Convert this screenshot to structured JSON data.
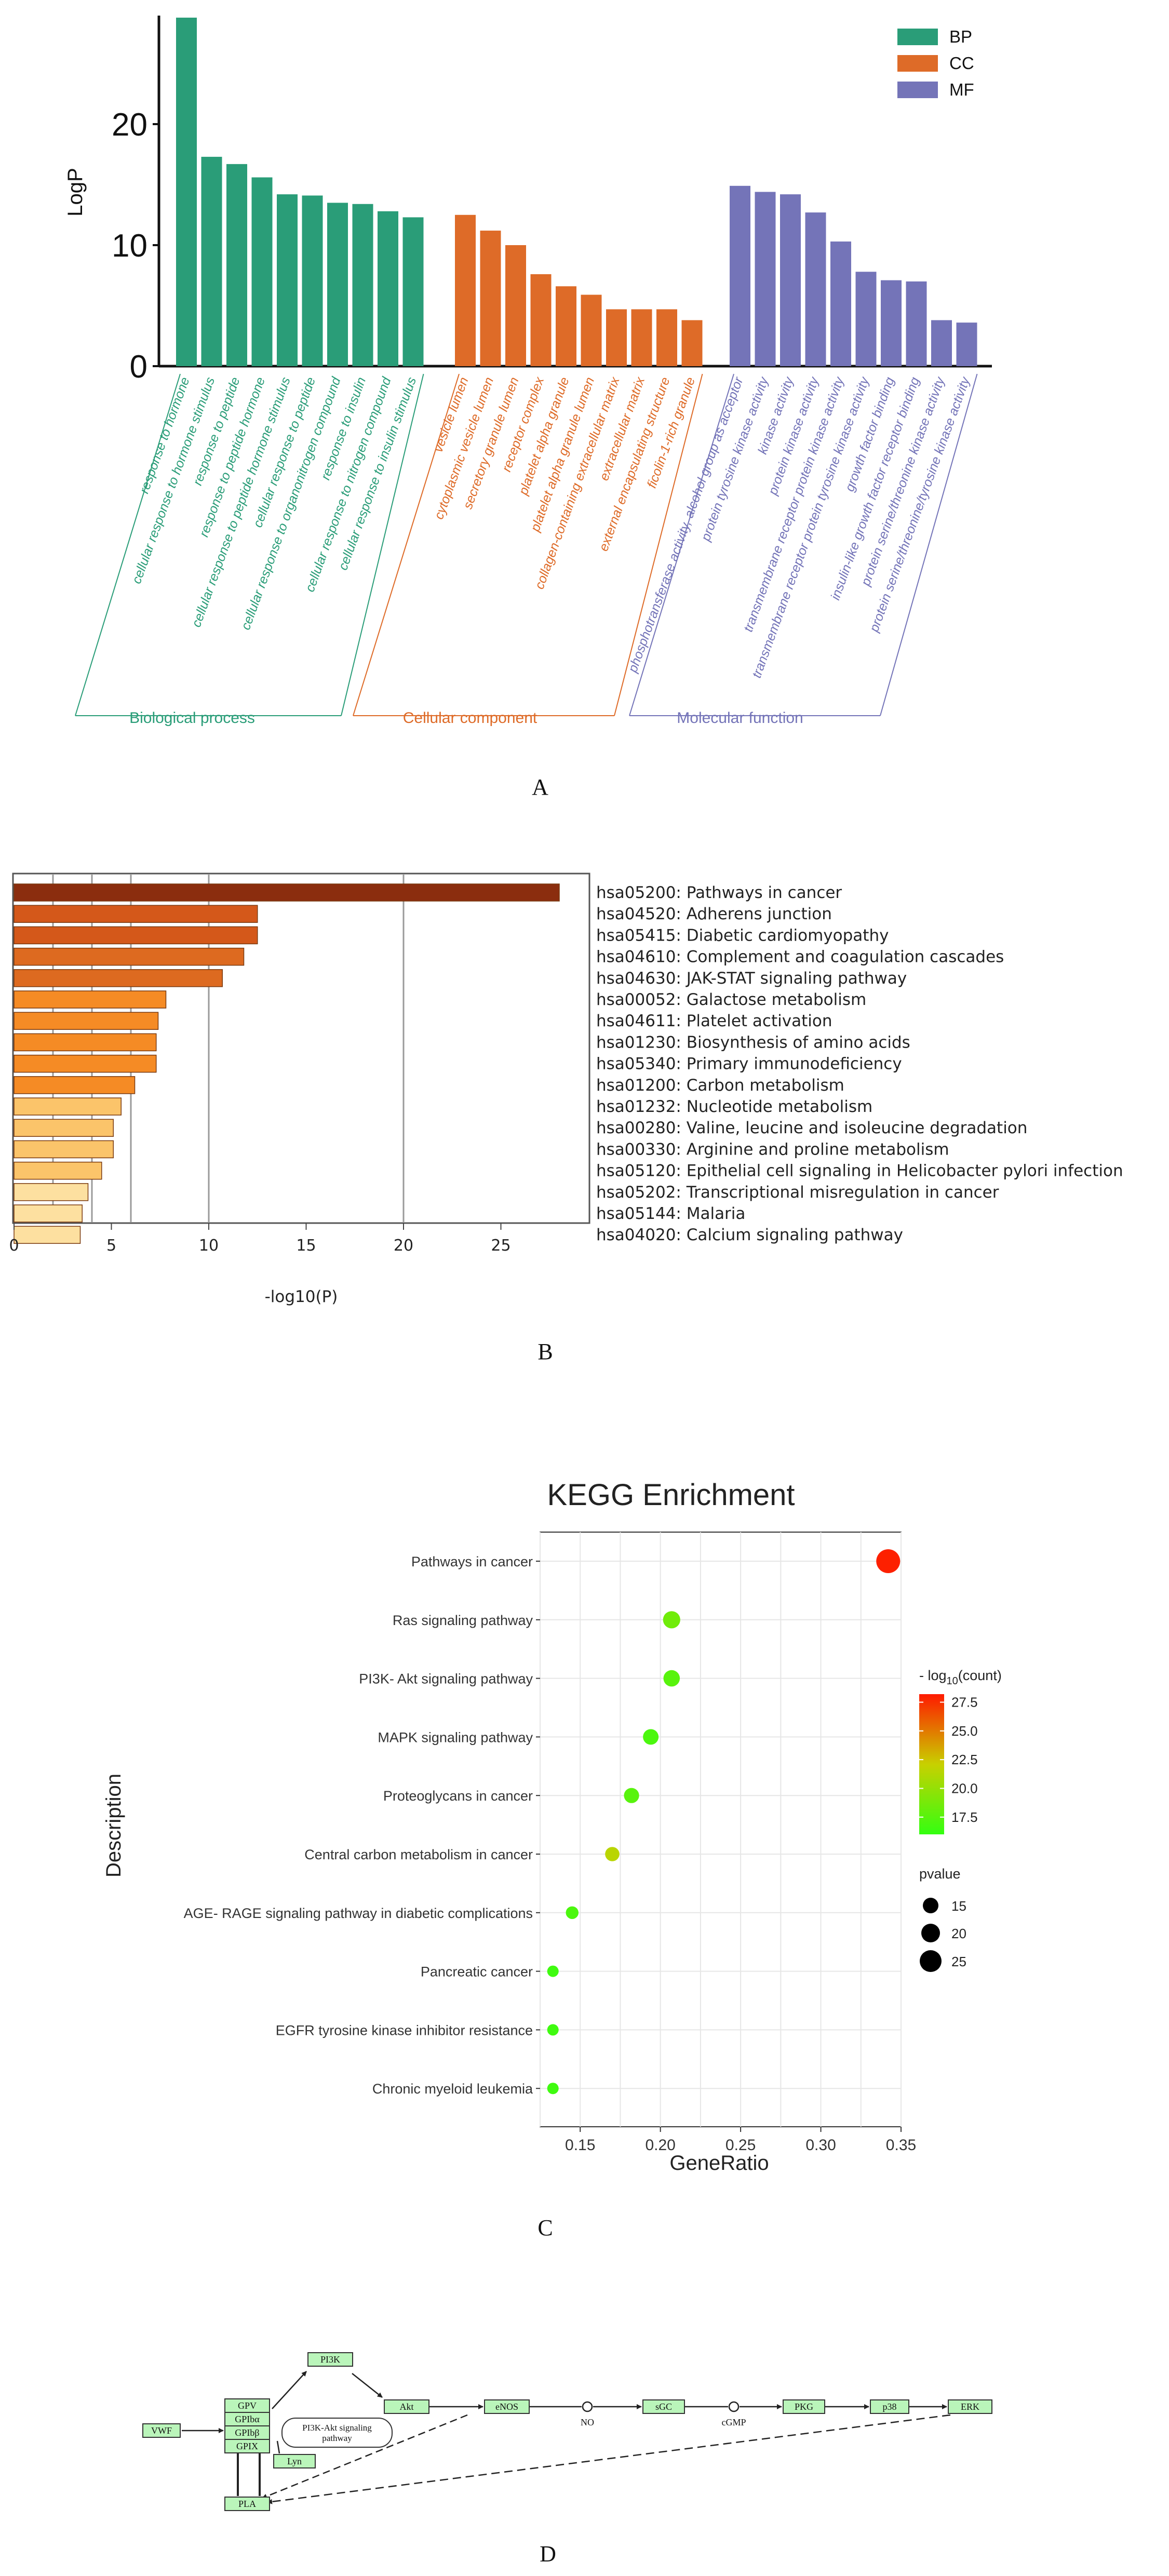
{
  "panel_labels": {
    "a": "A",
    "b": "B",
    "c": "C",
    "d": "D"
  },
  "colors": {
    "bp": "#2a9d78",
    "cc": "#de6b28",
    "mf": "#7474b8"
  },
  "chart_data": [
    {
      "type": "bar",
      "panel": "A",
      "ylabel": "LogP",
      "ylim": [
        0,
        29
      ],
      "yticks": [
        0,
        10,
        20
      ],
      "legend": [
        "BP",
        "CC",
        "MF"
      ],
      "groups": [
        {
          "key": "bp",
          "label": "Biological process",
          "categories": [
            "response to hormone",
            "cellular response to hormone stimulus",
            "response to peptide",
            "response to peptide hormone",
            "cellular response to peptide hormone stimulus",
            "cellular response to peptide",
            "cellular response to organonitrogen compound",
            "response to insulin",
            "cellular response to nitrogen compound",
            "cellular response to insulin stimulus"
          ],
          "values": [
            28.8,
            17.3,
            16.7,
            15.6,
            14.2,
            14.1,
            13.5,
            13.4,
            12.8,
            12.3
          ]
        },
        {
          "key": "cc",
          "label": "Cellular component",
          "categories": [
            "vesicle lumen",
            "cytoplasmic vesicle lumen",
            "secretory granule lumen",
            "receptor complex",
            "platelet alpha granule",
            "platelet alpha granule lumen",
            "collagen-containing extracellular matrix",
            "extracellular matrix",
            "external encapsulating structure",
            "ficolin-1-rich granule"
          ],
          "values": [
            12.5,
            11.2,
            10.0,
            7.6,
            6.6,
            5.9,
            4.7,
            4.7,
            4.7,
            3.8
          ]
        },
        {
          "key": "mf",
          "label": "Molecular function",
          "categories": [
            "phosphotransferase activity, alcohol group as acceptor",
            "protein tyrosine kinase activity",
            "kinase activity",
            "protein kinase activity",
            "transmembrane receptor protein kinase activity",
            "transmembrane receptor protein tyrosine kinase activity",
            "growth factor binding",
            "insulin-like growth factor receptor binding",
            "protein serine/threonine kinase activity",
            "protein serine/threonine/tyrosine kinase activity"
          ],
          "values": [
            14.9,
            14.4,
            14.2,
            12.7,
            10.3,
            7.8,
            7.1,
            7.0,
            3.8,
            3.6
          ]
        }
      ]
    },
    {
      "type": "bar",
      "panel": "B",
      "orientation": "horizontal",
      "xlabel": "-log10(P)",
      "xlim": [
        0,
        29.5
      ],
      "xticks": [
        0,
        5,
        10,
        15,
        20,
        25
      ],
      "gridlines": [
        2,
        4,
        6,
        10,
        20
      ],
      "categories": [
        "hsa05200: Pathways in cancer",
        "hsa04520: Adherens junction",
        "hsa05415: Diabetic cardiomyopathy",
        "hsa04610: Complement and coagulation cascades",
        "hsa04630: JAK-STAT signaling pathway",
        "hsa00052: Galactose metabolism",
        "hsa04611: Platelet activation",
        "hsa01230: Biosynthesis of amino acids",
        "hsa05340: Primary immunodeficiency",
        "hsa01200: Carbon metabolism",
        "hsa01232: Nucleotide metabolism",
        "hsa00280: Valine, leucine and isoleucine degradation",
        "hsa00330: Arginine and proline metabolism",
        "hsa05120: Epithelial cell signaling in Helicobacter pylori infection",
        "hsa05202: Transcriptional misregulation in cancer",
        "hsa05144: Malaria",
        "hsa04020: Calcium signaling pathway"
      ],
      "values": [
        28.0,
        12.5,
        12.5,
        11.8,
        10.7,
        7.8,
        7.4,
        7.3,
        7.3,
        6.2,
        5.5,
        5.1,
        5.1,
        4.5,
        3.8,
        3.5,
        3.4
      ],
      "bar_colors": [
        "#8b2d0e",
        "#d4581a",
        "#d4581a",
        "#dd6a20",
        "#dd6a20",
        "#f58b25",
        "#f58b25",
        "#f58b25",
        "#f58b25",
        "#f58b25",
        "#fbc46a",
        "#fbc46a",
        "#fbc46a",
        "#fbc46a",
        "#fde0a0",
        "#fde0a0",
        "#fde0a0"
      ]
    },
    {
      "type": "scatter",
      "panel": "C",
      "title": "KEGG Enrichment",
      "xlabel": "GeneRatio",
      "ylabel": "Description",
      "xlim": [
        0.125,
        0.35
      ],
      "xticks": [
        0.15,
        0.2,
        0.25,
        0.3,
        0.35
      ],
      "xtick_labels": [
        "0.15",
        "0.20",
        "0.25",
        "0.30",
        "0.35"
      ],
      "categories": [
        "Pathways in cancer",
        "Ras signaling pathway",
        "PI3K- Akt signaling pathway",
        "MAPK signaling pathway",
        "Proteoglycans in cancer",
        "Central carbon metabolism in cancer",
        "AGE- RAGE signaling pathway in diabetic complications",
        "Pancreatic cancer",
        "EGFR tyrosine kinase inhibitor resistance",
        "Chronic myeloid leukemia"
      ],
      "x": [
        0.342,
        0.207,
        0.207,
        0.194,
        0.182,
        0.17,
        0.145,
        0.133,
        0.133,
        0.133
      ],
      "color_value": [
        28.0,
        18.5,
        17.5,
        17.0,
        17.5,
        21.5,
        17.0,
        16.5,
        16.5,
        16.5
      ],
      "size_value": [
        28.0,
        20.0,
        19.0,
        18.0,
        17.5,
        16.5,
        14.5,
        13.0,
        13.0,
        13.0
      ],
      "color_legend": {
        "title_prefix": "- log",
        "title_sub": "10",
        "title_suffix": "(count)",
        "ticks": [
          "27.5",
          "25.0",
          "22.5",
          "20.0",
          "17.5"
        ],
        "tick_values": [
          27.5,
          25.0,
          22.5,
          20.0,
          17.5
        ],
        "range": [
          16.0,
          28.2
        ]
      },
      "size_legend": {
        "title": "pvalue",
        "items": [
          "15",
          "20",
          "25"
        ]
      }
    }
  ],
  "pathway": {
    "nodes": {
      "vwf": "VWF",
      "gpv": "GPV",
      "gpiba": "GPIbα",
      "gpibb": "GPIbβ",
      "gpix": "GPIX",
      "pi3k": "PI3K",
      "akt": "Akt",
      "lyn": "Lyn",
      "pla": "PLA",
      "enos": "eNOS",
      "sgc": "sGC",
      "pkg": "PKG",
      "p38": "p38",
      "erk": "ERK"
    },
    "compounds": {
      "no": "NO",
      "cgmp": "cGMP"
    },
    "map_label": {
      "line1": "PI3K-Akt signaling",
      "line2": "pathway"
    }
  }
}
